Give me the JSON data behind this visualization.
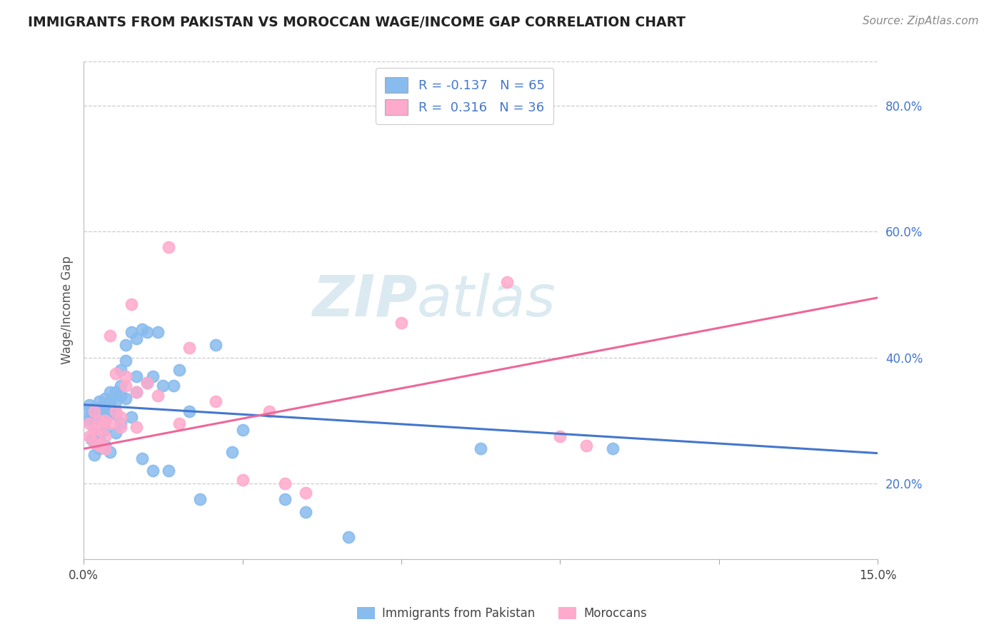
{
  "title": "IMMIGRANTS FROM PAKISTAN VS MOROCCAN WAGE/INCOME GAP CORRELATION CHART",
  "source": "Source: ZipAtlas.com",
  "ylabel": "Wage/Income Gap",
  "ytick_labels": [
    "20.0%",
    "40.0%",
    "60.0%",
    "80.0%"
  ],
  "ytick_positions": [
    0.2,
    0.4,
    0.6,
    0.8
  ],
  "xmin": 0.0,
  "xmax": 0.15,
  "ymin": 0.08,
  "ymax": 0.87,
  "blue_color": "#88BBEE",
  "pink_color": "#FFAACC",
  "blue_line_color": "#4477CC",
  "pink_line_color": "#EE6699",
  "blue_label": "Immigrants from Pakistan",
  "pink_label": "Moroccans",
  "watermark_zip": "ZIP",
  "watermark_atlas": "atlas",
  "pakistan_x": [
    0.0005,
    0.001,
    0.001,
    0.0015,
    0.0015,
    0.002,
    0.002,
    0.002,
    0.002,
    0.002,
    0.003,
    0.003,
    0.003,
    0.003,
    0.003,
    0.003,
    0.003,
    0.004,
    0.004,
    0.004,
    0.004,
    0.004,
    0.004,
    0.005,
    0.005,
    0.005,
    0.005,
    0.005,
    0.006,
    0.006,
    0.006,
    0.006,
    0.007,
    0.007,
    0.007,
    0.007,
    0.008,
    0.008,
    0.008,
    0.009,
    0.009,
    0.01,
    0.01,
    0.01,
    0.011,
    0.011,
    0.012,
    0.012,
    0.013,
    0.013,
    0.014,
    0.015,
    0.016,
    0.017,
    0.018,
    0.02,
    0.022,
    0.025,
    0.028,
    0.03,
    0.038,
    0.042,
    0.05,
    0.075,
    0.1
  ],
  "pakistan_y": [
    0.315,
    0.3,
    0.325,
    0.31,
    0.27,
    0.32,
    0.3,
    0.285,
    0.265,
    0.245,
    0.33,
    0.32,
    0.31,
    0.295,
    0.28,
    0.27,
    0.255,
    0.335,
    0.32,
    0.31,
    0.3,
    0.285,
    0.26,
    0.345,
    0.33,
    0.32,
    0.31,
    0.25,
    0.345,
    0.33,
    0.31,
    0.28,
    0.38,
    0.355,
    0.34,
    0.295,
    0.42,
    0.395,
    0.335,
    0.44,
    0.305,
    0.43,
    0.37,
    0.345,
    0.445,
    0.24,
    0.44,
    0.36,
    0.37,
    0.22,
    0.44,
    0.355,
    0.22,
    0.355,
    0.38,
    0.315,
    0.175,
    0.42,
    0.25,
    0.285,
    0.175,
    0.155,
    0.115,
    0.255,
    0.255
  ],
  "moroccan_x": [
    0.001,
    0.001,
    0.002,
    0.002,
    0.002,
    0.003,
    0.003,
    0.003,
    0.004,
    0.004,
    0.004,
    0.005,
    0.005,
    0.006,
    0.006,
    0.007,
    0.007,
    0.008,
    0.008,
    0.009,
    0.01,
    0.01,
    0.012,
    0.014,
    0.016,
    0.018,
    0.02,
    0.025,
    0.03,
    0.035,
    0.038,
    0.042,
    0.06,
    0.08,
    0.09,
    0.095
  ],
  "moroccan_y": [
    0.295,
    0.275,
    0.315,
    0.285,
    0.265,
    0.3,
    0.285,
    0.26,
    0.3,
    0.275,
    0.255,
    0.435,
    0.295,
    0.375,
    0.315,
    0.29,
    0.305,
    0.37,
    0.355,
    0.485,
    0.345,
    0.29,
    0.36,
    0.34,
    0.575,
    0.295,
    0.415,
    0.33,
    0.205,
    0.315,
    0.2,
    0.185,
    0.455,
    0.52,
    0.275,
    0.26
  ]
}
